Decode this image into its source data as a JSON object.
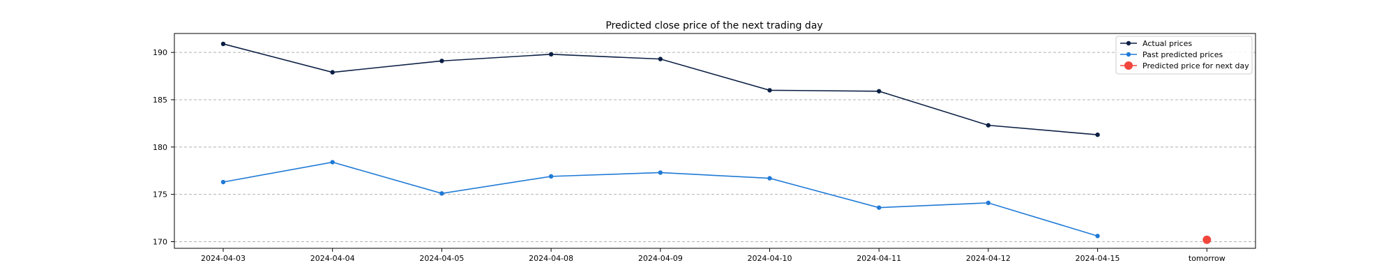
{
  "chart_data": {
    "type": "line",
    "title": "Predicted close price of the next trading day",
    "xlabel": "",
    "ylabel": "",
    "categories": [
      "2024-04-03",
      "2024-04-04",
      "2024-04-05",
      "2024-04-08",
      "2024-04-09",
      "2024-04-10",
      "2024-04-11",
      "2024-04-12",
      "2024-04-15",
      "tomorrow"
    ],
    "ylim": [
      169.3,
      192.0
    ],
    "yticks": [
      170,
      175,
      180,
      185,
      190
    ],
    "grid": "horizontal-dashed",
    "legend_position": "top-right",
    "series": [
      {
        "name": "Actual prices",
        "color": "#0b1f44",
        "marker": "circle",
        "values": [
          190.9,
          187.9,
          189.1,
          189.8,
          189.3,
          186.0,
          185.9,
          182.3,
          181.3,
          null
        ]
      },
      {
        "name": "Past predicted prices",
        "color": "#1f7ad6",
        "marker": "circle",
        "values": [
          176.3,
          178.4,
          175.1,
          176.9,
          177.3,
          176.7,
          173.6,
          174.1,
          170.6,
          null
        ]
      },
      {
        "name": "Predicted price for next day",
        "color": "#f0463c",
        "marker": "large-circle",
        "values": [
          null,
          null,
          null,
          null,
          null,
          null,
          null,
          null,
          null,
          170.2
        ]
      }
    ]
  }
}
